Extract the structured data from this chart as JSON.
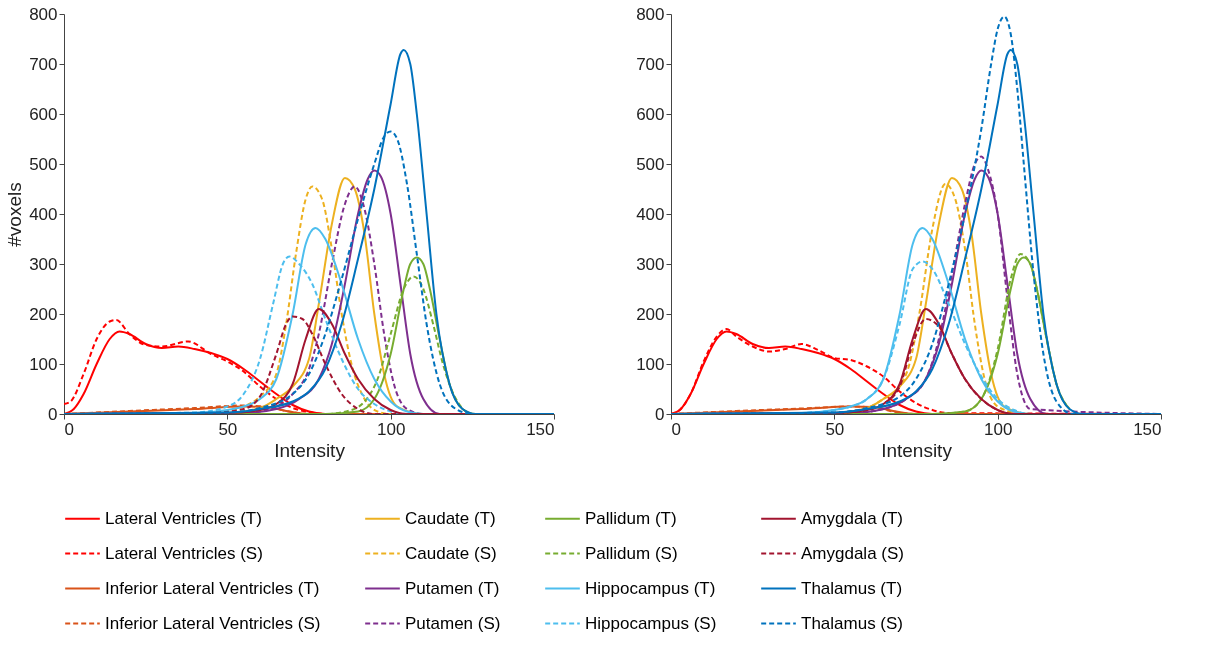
{
  "chart_data": [
    {
      "type": "line",
      "xlabel": "Intensity",
      "ylabel": "#voxels",
      "xlim": [
        0,
        150
      ],
      "ylim": [
        0,
        800
      ],
      "xticks": [
        0,
        50,
        100,
        150
      ],
      "yticks": [
        0,
        100,
        200,
        300,
        400,
        500,
        600,
        700,
        800
      ],
      "legend": "bottom",
      "series": [
        {
          "name": "Lateral Ventricles (T)",
          "color": "#ff0000",
          "line_style": "solid",
          "x": [
            0,
            3,
            6,
            10,
            14,
            17,
            20,
            25,
            30,
            35,
            40,
            45,
            50,
            55,
            60,
            65,
            70,
            75,
            80,
            90,
            150
          ],
          "values": [
            0,
            10,
            40,
            100,
            150,
            165,
            160,
            140,
            132,
            135,
            130,
            122,
            110,
            90,
            65,
            40,
            18,
            5,
            0,
            0,
            0
          ]
        },
        {
          "name": "Lateral Ventricles (S)",
          "color": "#ff0000",
          "line_style": "dashed",
          "x": [
            0,
            2,
            6,
            10,
            14,
            16,
            20,
            25,
            30,
            38,
            45,
            50,
            55,
            60,
            65,
            70,
            75,
            80,
            90,
            150
          ],
          "values": [
            20,
            25,
            80,
            150,
            185,
            188,
            160,
            138,
            135,
            145,
            120,
            105,
            85,
            55,
            30,
            12,
            4,
            0,
            0,
            0
          ]
        },
        {
          "name": "Inferior Lateral Ventricles (T)",
          "color": "#d95319",
          "line_style": "solid",
          "x": [
            0,
            20,
            40,
            55,
            62,
            68,
            75,
            150
          ],
          "values": [
            0,
            5,
            10,
            15,
            14,
            6,
            0,
            0
          ]
        },
        {
          "name": "Inferior Lateral Ventricles (S)",
          "color": "#d95319",
          "line_style": "dashed",
          "x": [
            0,
            20,
            40,
            55,
            62,
            68,
            75,
            150
          ],
          "values": [
            0,
            6,
            12,
            17,
            14,
            6,
            0,
            0
          ]
        },
        {
          "name": "Caudate (T)",
          "color": "#edb120",
          "line_style": "solid",
          "x": [
            0,
            50,
            60,
            65,
            70,
            75,
            78,
            82,
            86,
            89,
            92,
            95,
            98,
            102,
            110,
            150
          ],
          "values": [
            0,
            2,
            12,
            30,
            55,
            110,
            220,
            380,
            472,
            450,
            360,
            200,
            80,
            15,
            0,
            0
          ]
        },
        {
          "name": "Caudate (S)",
          "color": "#edb120",
          "line_style": "dashed",
          "x": [
            0,
            45,
            55,
            60,
            65,
            68,
            71,
            74,
            76,
            79,
            82,
            85,
            88,
            92,
            96,
            100,
            150
          ],
          "values": [
            0,
            2,
            15,
            35,
            80,
            180,
            320,
            430,
            455,
            430,
            330,
            200,
            100,
            30,
            5,
            0,
            0
          ]
        },
        {
          "name": "Putamen (T)",
          "color": "#7e2f8e",
          "line_style": "solid",
          "x": [
            0,
            55,
            65,
            72,
            78,
            82,
            86,
            90,
            93,
            95,
            97,
            100,
            103,
            106,
            110,
            115,
            150
          ],
          "values": [
            0,
            2,
            10,
            30,
            70,
            140,
            260,
            400,
            470,
            487,
            475,
            400,
            260,
            120,
            30,
            0,
            0
          ]
        },
        {
          "name": "Putamen (S)",
          "color": "#7e2f8e",
          "line_style": "dashed",
          "x": [
            0,
            55,
            65,
            70,
            75,
            78,
            82,
            86,
            89,
            92,
            95,
            98,
            101,
            105,
            110,
            150
          ],
          "values": [
            0,
            2,
            15,
            40,
            90,
            160,
            300,
            420,
            455,
            410,
            300,
            160,
            60,
            10,
            0,
            0
          ]
        },
        {
          "name": "Pallidum (T)",
          "color": "#77ac30",
          "line_style": "solid",
          "x": [
            0,
            80,
            90,
            95,
            100,
            104,
            106,
            108,
            110,
            112,
            115,
            118,
            122,
            126,
            150
          ],
          "values": [
            0,
            0,
            5,
            30,
            120,
            250,
            300,
            313,
            300,
            250,
            150,
            60,
            10,
            0,
            0
          ]
        },
        {
          "name": "Pallidum (S)",
          "color": "#77ac30",
          "line_style": "dashed",
          "x": [
            0,
            80,
            88,
            92,
            96,
            100,
            104,
            107,
            110,
            113,
            116,
            120,
            125,
            150
          ],
          "values": [
            0,
            0,
            8,
            25,
            70,
            160,
            250,
            275,
            250,
            180,
            100,
            30,
            0,
            0
          ]
        },
        {
          "name": "Hippocampus (T)",
          "color": "#4dbeee",
          "line_style": "solid",
          "x": [
            0,
            40,
            50,
            55,
            60,
            65,
            70,
            74,
            77,
            80,
            85,
            90,
            95,
            100,
            105,
            110,
            150
          ],
          "values": [
            0,
            2,
            8,
            15,
            30,
            70,
            200,
            340,
            372,
            350,
            260,
            150,
            70,
            25,
            5,
            0,
            0
          ]
        },
        {
          "name": "Hippocampus (S)",
          "color": "#4dbeee",
          "line_style": "dashed",
          "x": [
            0,
            40,
            50,
            55,
            60,
            64,
            67,
            69,
            72,
            76,
            80,
            85,
            90,
            95,
            100,
            105,
            150
          ],
          "values": [
            0,
            3,
            15,
            40,
            110,
            220,
            300,
            315,
            300,
            260,
            190,
            110,
            50,
            20,
            5,
            0,
            0
          ]
        },
        {
          "name": "Amygdala (T)",
          "color": "#a2142f",
          "line_style": "solid",
          "x": [
            0,
            50,
            60,
            65,
            70,
            74,
            78,
            82,
            86,
            90,
            95,
            100,
            105,
            150
          ],
          "values": [
            0,
            2,
            8,
            20,
            60,
            150,
            210,
            180,
            120,
            70,
            30,
            8,
            0,
            0
          ]
        },
        {
          "name": "Amygdala (S)",
          "color": "#a2142f",
          "line_style": "dashed",
          "x": [
            0,
            45,
            55,
            60,
            65,
            68,
            70,
            73,
            76,
            80,
            85,
            90,
            95,
            150
          ],
          "values": [
            0,
            2,
            10,
            35,
            120,
            180,
            195,
            190,
            160,
            100,
            40,
            10,
            0,
            0
          ]
        },
        {
          "name": "Thalamus (T)",
          "color": "#0072bd",
          "line_style": "solid",
          "x": [
            0,
            50,
            60,
            70,
            75,
            80,
            85,
            90,
            95,
            100,
            103,
            104,
            106,
            108,
            111,
            114,
            118,
            122,
            126,
            150
          ],
          "values": [
            0,
            3,
            10,
            25,
            45,
            90,
            180,
            310,
            450,
            620,
            720,
            728,
            700,
            600,
            400,
            200,
            60,
            10,
            0,
            0
          ]
        },
        {
          "name": "Thalamus (S)",
          "color": "#0072bd",
          "line_style": "dashed",
          "x": [
            0,
            50,
            60,
            70,
            75,
            80,
            85,
            90,
            95,
            98,
            100,
            102,
            105,
            108,
            111,
            115,
            120,
            125,
            150
          ],
          "values": [
            0,
            3,
            12,
            40,
            80,
            160,
            270,
            390,
            500,
            555,
            565,
            550,
            460,
            320,
            180,
            60,
            10,
            0,
            0
          ]
        }
      ]
    },
    {
      "type": "line",
      "xlabel": "Intensity",
      "xlim": [
        0,
        150
      ],
      "ylim": [
        0,
        800
      ],
      "xticks": [
        0,
        50,
        100,
        150
      ],
      "yticks": [
        0,
        100,
        200,
        300,
        400,
        500,
        600,
        700,
        800
      ],
      "legend": "bottom",
      "series": [
        {
          "name": "Lateral Ventricles (T)",
          "color": "#ff0000",
          "line_style": "solid",
          "x": [
            0,
            3,
            6,
            10,
            14,
            17,
            20,
            25,
            30,
            35,
            40,
            45,
            50,
            55,
            60,
            65,
            70,
            75,
            80,
            90,
            150
          ],
          "values": [
            0,
            10,
            40,
            100,
            150,
            165,
            160,
            140,
            132,
            135,
            130,
            122,
            110,
            90,
            65,
            40,
            18,
            5,
            0,
            0,
            0
          ]
        },
        {
          "name": "Lateral Ventricles (S)",
          "color": "#ff0000",
          "line_style": "dashed",
          "x": [
            0,
            3,
            6,
            10,
            14,
            17,
            20,
            25,
            30,
            35,
            40,
            45,
            50,
            55,
            60,
            65,
            70,
            75,
            80,
            85,
            150
          ],
          "values": [
            0,
            10,
            40,
            105,
            155,
            170,
            155,
            135,
            125,
            130,
            140,
            128,
            112,
            108,
            95,
            75,
            45,
            22,
            8,
            2,
            0
          ]
        },
        {
          "name": "Inferior Lateral Ventricles (T)",
          "color": "#d95319",
          "line_style": "solid",
          "x": [
            0,
            20,
            40,
            55,
            62,
            68,
            75,
            150
          ],
          "values": [
            0,
            5,
            10,
            15,
            14,
            6,
            0,
            0
          ]
        },
        {
          "name": "Inferior Lateral Ventricles (S)",
          "color": "#d95319",
          "line_style": "dashed",
          "x": [
            0,
            20,
            40,
            55,
            62,
            68,
            75,
            150
          ],
          "values": [
            0,
            6,
            11,
            15,
            13,
            5,
            0,
            0
          ]
        },
        {
          "name": "Caudate (T)",
          "color": "#edb120",
          "line_style": "solid",
          "x": [
            0,
            50,
            60,
            65,
            70,
            75,
            78,
            82,
            86,
            89,
            92,
            95,
            98,
            102,
            110,
            150
          ],
          "values": [
            0,
            2,
            12,
            30,
            55,
            110,
            220,
            380,
            472,
            450,
            360,
            200,
            80,
            15,
            0,
            0
          ]
        },
        {
          "name": "Caudate (S)",
          "color": "#edb120",
          "line_style": "dashed",
          "x": [
            0,
            50,
            60,
            65,
            70,
            73,
            76,
            80,
            84,
            87,
            90,
            93,
            96,
            100,
            108,
            150
          ],
          "values": [
            0,
            2,
            12,
            30,
            55,
            100,
            200,
            370,
            460,
            430,
            330,
            180,
            70,
            15,
            0,
            0
          ]
        },
        {
          "name": "Putamen (T)",
          "color": "#7e2f8e",
          "line_style": "solid",
          "x": [
            0,
            55,
            65,
            72,
            78,
            82,
            86,
            90,
            93,
            95,
            97,
            100,
            103,
            106,
            110,
            115,
            150
          ],
          "values": [
            0,
            2,
            10,
            30,
            70,
            140,
            260,
            400,
            470,
            487,
            475,
            400,
            260,
            120,
            30,
            0,
            0
          ]
        },
        {
          "name": "Putamen (S)",
          "color": "#7e2f8e",
          "line_style": "dashed",
          "x": [
            0,
            55,
            65,
            72,
            78,
            82,
            86,
            90,
            93,
            95,
            97,
            100,
            103,
            106,
            110,
            150
          ],
          "values": [
            0,
            2,
            10,
            30,
            70,
            150,
            280,
            420,
            500,
            515,
            490,
            400,
            230,
            80,
            10,
            0
          ]
        },
        {
          "name": "Pallidum (T)",
          "color": "#77ac30",
          "line_style": "solid",
          "x": [
            0,
            80,
            90,
            95,
            100,
            104,
            106,
            108,
            110,
            112,
            115,
            118,
            122
          ],
          "values": [
            0,
            0,
            5,
            30,
            120,
            250,
            300,
            313,
            300,
            250,
            150,
            60,
            10
          ]
        },
        {
          "name": "Pallidum (S)",
          "color": "#77ac30",
          "line_style": "dashed",
          "x": [
            0,
            80,
            90,
            95,
            100,
            104,
            107,
            110,
            112,
            115,
            118,
            121
          ],
          "values": [
            0,
            0,
            5,
            30,
            130,
            270,
            320,
            300,
            250,
            150,
            60,
            18
          ]
        },
        {
          "name": "Hippocampus (T)",
          "color": "#4dbeee",
          "line_style": "solid",
          "x": [
            0,
            40,
            50,
            55,
            60,
            65,
            70,
            74,
            77,
            80,
            85,
            90,
            95,
            100,
            105,
            110,
            150
          ],
          "values": [
            0,
            2,
            8,
            15,
            30,
            70,
            200,
            340,
            372,
            350,
            260,
            150,
            70,
            25,
            5,
            0,
            0
          ]
        },
        {
          "name": "Hippocampus (S)",
          "color": "#4dbeee",
          "line_style": "dashed",
          "x": [
            0,
            40,
            50,
            55,
            60,
            65,
            70,
            74,
            77,
            80,
            85,
            90,
            95,
            100,
            105,
            110,
            150
          ],
          "values": [
            0,
            2,
            8,
            15,
            30,
            70,
            180,
            290,
            305,
            290,
            220,
            140,
            75,
            30,
            8,
            0,
            0
          ]
        },
        {
          "name": "Amygdala (T)",
          "color": "#a2142f",
          "line_style": "solid",
          "x": [
            0,
            50,
            60,
            65,
            70,
            74,
            78,
            82,
            86,
            90,
            95,
            100,
            105,
            150
          ],
          "values": [
            0,
            2,
            8,
            20,
            60,
            150,
            210,
            180,
            120,
            70,
            30,
            8,
            0,
            0
          ]
        },
        {
          "name": "Amygdala (S)",
          "color": "#a2142f",
          "line_style": "dashed",
          "x": [
            0,
            50,
            60,
            65,
            70,
            74,
            78,
            82,
            86,
            90,
            95,
            100,
            105,
            150
          ],
          "values": [
            0,
            2,
            8,
            20,
            55,
            140,
            190,
            175,
            120,
            70,
            30,
            8,
            0,
            0
          ]
        },
        {
          "name": "Thalamus (T)",
          "color": "#0072bd",
          "line_style": "solid",
          "x": [
            0,
            50,
            60,
            70,
            75,
            80,
            85,
            90,
            95,
            100,
            103,
            104,
            106,
            108,
            111,
            114,
            118,
            122,
            126,
            150
          ],
          "values": [
            0,
            3,
            10,
            25,
            45,
            90,
            180,
            310,
            450,
            620,
            720,
            728,
            700,
            600,
            400,
            200,
            60,
            10,
            0,
            0
          ]
        },
        {
          "name": "Thalamus (S)",
          "color": "#0072bd",
          "line_style": "dashed",
          "x": [
            0,
            50,
            60,
            70,
            75,
            80,
            85,
            90,
            95,
            98,
            100,
            102,
            104,
            106,
            108,
            111,
            114,
            118,
            123,
            150
          ],
          "values": [
            0,
            3,
            12,
            35,
            70,
            140,
            260,
            400,
            570,
            700,
            770,
            795,
            760,
            650,
            500,
            280,
            120,
            25,
            0,
            0
          ]
        }
      ]
    }
  ]
}
